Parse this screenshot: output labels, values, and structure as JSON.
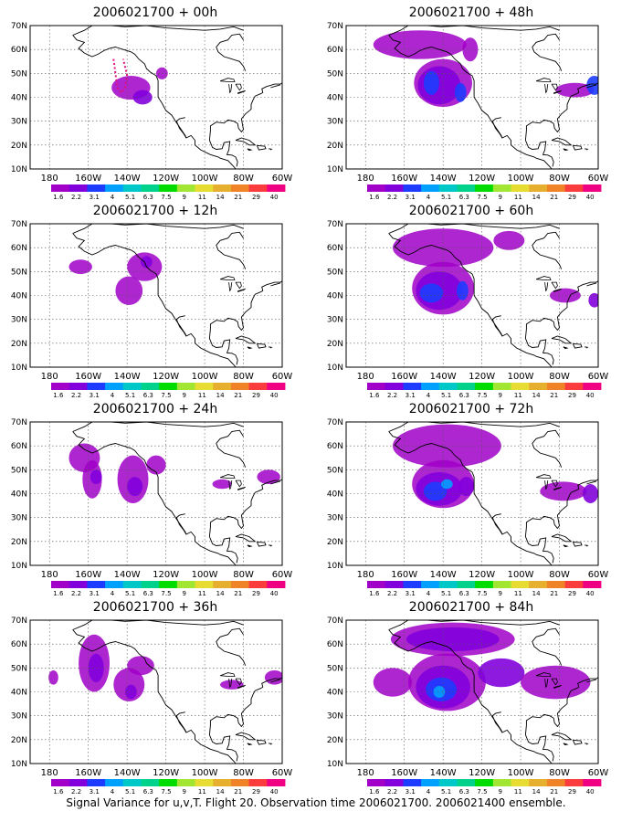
{
  "figure": {
    "caption": "Signal Variance for u,v,T. Flight 20. Observation time 2006021700. 2006021400 ensemble."
  },
  "axes": {
    "lat_labels": [
      "70N",
      "60N",
      "50N",
      "40N",
      "30N",
      "20N",
      "10N"
    ],
    "lon_labels": [
      "180",
      "160W",
      "140W",
      "120W",
      "100W",
      "80W",
      "60W"
    ]
  },
  "colorbar": {
    "levels": [
      "1.6",
      "2.2",
      "3.1",
      "4",
      "5.1",
      "6.3",
      "7.5",
      "9",
      "11",
      "14",
      "21",
      "29",
      "40"
    ],
    "colors": [
      "#a000c8",
      "#8200dc",
      "#1e3cff",
      "#00a0ff",
      "#00c8c8",
      "#00d28c",
      "#00dc00",
      "#a0e632",
      "#e6dc32",
      "#e6af2d",
      "#f08228",
      "#fa3c3c",
      "#f00082"
    ]
  },
  "panels": [
    {
      "title": "2006021700 + 00h",
      "blobs": [
        {
          "lon": -138,
          "lat": 44,
          "rx": 10,
          "ry": 5,
          "level": 0
        },
        {
          "lon": -132,
          "lat": 40,
          "rx": 5,
          "ry": 3,
          "level": 1
        },
        {
          "lon": -122,
          "lat": 50,
          "rx": 3,
          "ry": 2.5,
          "level": 0
        }
      ],
      "flight_track": [
        [
          -147,
          56
        ],
        [
          -146,
          50
        ],
        [
          -145,
          44
        ],
        [
          -143,
          42
        ],
        [
          -141,
          44
        ],
        [
          -140,
          49
        ],
        [
          -142,
          56
        ]
      ]
    },
    {
      "title": "2006021700 + 48h",
      "blobs": [
        {
          "lon": -152,
          "lat": 62,
          "rx": 24,
          "ry": 6,
          "level": 0
        },
        {
          "lon": -140,
          "lat": 46,
          "rx": 15,
          "ry": 10,
          "level": 0
        },
        {
          "lon": -142,
          "lat": 45,
          "rx": 11,
          "ry": 8,
          "level": 1
        },
        {
          "lon": -146,
          "lat": 46,
          "rx": 4,
          "ry": 5,
          "level": 2
        },
        {
          "lon": -131,
          "lat": 42,
          "rx": 3,
          "ry": 4,
          "level": 2
        },
        {
          "lon": -126,
          "lat": 60,
          "rx": 4,
          "ry": 5,
          "level": 0
        },
        {
          "lon": -72,
          "lat": 43,
          "rx": 10,
          "ry": 3,
          "level": 0
        },
        {
          "lon": -62,
          "lat": 45,
          "rx": 4,
          "ry": 4,
          "level": 2
        }
      ]
    },
    {
      "title": "2006021700 + 12h",
      "blobs": [
        {
          "lon": -164,
          "lat": 52,
          "rx": 6,
          "ry": 3,
          "level": 0
        },
        {
          "lon": -139,
          "lat": 42,
          "rx": 7,
          "ry": 6,
          "level": 0
        },
        {
          "lon": -131,
          "lat": 52,
          "rx": 9,
          "ry": 6,
          "level": 0
        },
        {
          "lon": -130,
          "lat": 54,
          "rx": 3,
          "ry": 2.5,
          "level": 1
        }
      ]
    },
    {
      "title": "2006021700 + 60h",
      "blobs": [
        {
          "lon": -140,
          "lat": 60,
          "rx": 26,
          "ry": 8,
          "level": 0
        },
        {
          "lon": -140,
          "lat": 43,
          "rx": 16,
          "ry": 11,
          "level": 0
        },
        {
          "lon": -142,
          "lat": 42,
          "rx": 12,
          "ry": 8,
          "level": 1
        },
        {
          "lon": -146,
          "lat": 41,
          "rx": 6,
          "ry": 4,
          "level": 2
        },
        {
          "lon": -130,
          "lat": 42,
          "rx": 3,
          "ry": 4,
          "level": 2
        },
        {
          "lon": -106,
          "lat": 63,
          "rx": 8,
          "ry": 4,
          "level": 0
        },
        {
          "lon": -77,
          "lat": 40,
          "rx": 8,
          "ry": 3,
          "level": 0
        },
        {
          "lon": -62,
          "lat": 38,
          "rx": 3,
          "ry": 3,
          "level": 1
        }
      ]
    },
    {
      "title": "2006021700 + 24h",
      "blobs": [
        {
          "lon": -162,
          "lat": 55,
          "rx": 8,
          "ry": 6,
          "level": 0
        },
        {
          "lon": -158,
          "lat": 46,
          "rx": 5,
          "ry": 8,
          "level": 0
        },
        {
          "lon": -156,
          "lat": 47,
          "rx": 3,
          "ry": 3,
          "level": 1
        },
        {
          "lon": -137,
          "lat": 46,
          "rx": 8,
          "ry": 10,
          "level": 0
        },
        {
          "lon": -136,
          "lat": 43,
          "rx": 4,
          "ry": 4,
          "level": 1
        },
        {
          "lon": -125,
          "lat": 52,
          "rx": 5,
          "ry": 4,
          "level": 0
        },
        {
          "lon": -91,
          "lat": 44,
          "rx": 5,
          "ry": 2,
          "level": 0
        },
        {
          "lon": -67,
          "lat": 47,
          "rx": 6,
          "ry": 3,
          "level": 0
        }
      ]
    },
    {
      "title": "2006021700 + 72h",
      "blobs": [
        {
          "lon": -138,
          "lat": 60,
          "rx": 28,
          "ry": 9,
          "level": 0
        },
        {
          "lon": -140,
          "lat": 44,
          "rx": 16,
          "ry": 10,
          "level": 0
        },
        {
          "lon": -142,
          "lat": 42,
          "rx": 12,
          "ry": 7,
          "level": 1
        },
        {
          "lon": -144,
          "lat": 41,
          "rx": 6,
          "ry": 4,
          "level": 2
        },
        {
          "lon": -138,
          "lat": 44,
          "rx": 3,
          "ry": 2,
          "level": 3
        },
        {
          "lon": -128,
          "lat": 43,
          "rx": 4,
          "ry": 4,
          "level": 1
        },
        {
          "lon": -78,
          "lat": 41,
          "rx": 12,
          "ry": 4,
          "level": 0
        },
        {
          "lon": -64,
          "lat": 40,
          "rx": 4,
          "ry": 4,
          "level": 1
        }
      ]
    },
    {
      "title": "2006021700 + 36h",
      "blobs": [
        {
          "lon": -178,
          "lat": 46,
          "rx": 2.5,
          "ry": 3,
          "level": 0
        },
        {
          "lon": -157,
          "lat": 52,
          "rx": 8,
          "ry": 12,
          "level": 0
        },
        {
          "lon": -156,
          "lat": 50,
          "rx": 4,
          "ry": 6,
          "level": 1
        },
        {
          "lon": -139,
          "lat": 43,
          "rx": 8,
          "ry": 7,
          "level": 0
        },
        {
          "lon": -138,
          "lat": 40,
          "rx": 3,
          "ry": 3,
          "level": 1
        },
        {
          "lon": -133,
          "lat": 51,
          "rx": 7,
          "ry": 4,
          "level": 0
        },
        {
          "lon": -86,
          "lat": 43,
          "rx": 6,
          "ry": 2,
          "level": 0
        },
        {
          "lon": -64,
          "lat": 46,
          "rx": 5,
          "ry": 3,
          "level": 0
        }
      ]
    },
    {
      "title": "2006021700 + 84h",
      "blobs": [
        {
          "lon": -135,
          "lat": 62,
          "rx": 32,
          "ry": 7,
          "level": 0
        },
        {
          "lon": -135,
          "lat": 62,
          "rx": 24,
          "ry": 5,
          "level": 1
        },
        {
          "lon": -138,
          "lat": 44,
          "rx": 20,
          "ry": 12,
          "level": 0
        },
        {
          "lon": -140,
          "lat": 42,
          "rx": 14,
          "ry": 9,
          "level": 1
        },
        {
          "lon": -141,
          "lat": 41,
          "rx": 8,
          "ry": 5,
          "level": 2
        },
        {
          "lon": -142,
          "lat": 40,
          "rx": 3,
          "ry": 2.5,
          "level": 3
        },
        {
          "lon": -110,
          "lat": 48,
          "rx": 12,
          "ry": 6,
          "level": 1
        },
        {
          "lon": -82,
          "lat": 44,
          "rx": 18,
          "ry": 7,
          "level": 0
        },
        {
          "lon": -166,
          "lat": 44,
          "rx": 10,
          "ry": 6,
          "level": 0
        }
      ]
    }
  ]
}
